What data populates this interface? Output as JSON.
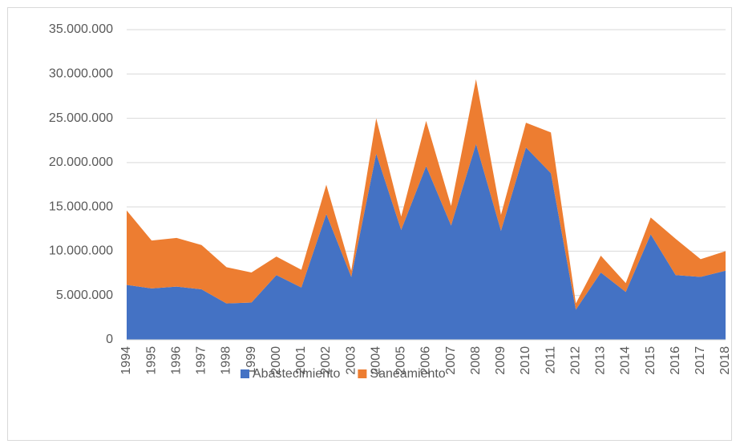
{
  "chart_data": {
    "type": "stacked_area",
    "categories": [
      "1994",
      "1995",
      "1996",
      "1997",
      "1998",
      "1999",
      "2000",
      "2001",
      "2002",
      "2003",
      "2004",
      "2005",
      "2006",
      "2007",
      "2008",
      "2009",
      "2010",
      "2011",
      "2012",
      "2013",
      "2014",
      "2015",
      "2016",
      "2017",
      "2018"
    ],
    "series": [
      {
        "name": "Abastecimiento",
        "color": "#4472c4",
        "values": [
          6200000,
          5800000,
          6000000,
          5700000,
          4100000,
          4200000,
          7300000,
          5900000,
          14200000,
          7100000,
          21000000,
          12400000,
          19600000,
          12900000,
          22100000,
          12300000,
          21700000,
          18800000,
          3400000,
          7600000,
          5400000,
          11900000,
          7300000,
          7100000,
          7800000
        ]
      },
      {
        "name": "Saneamiento",
        "color": "#ed7d31",
        "values": [
          8400000,
          5400000,
          5500000,
          5000000,
          4100000,
          3400000,
          2100000,
          2000000,
          3300000,
          700000,
          4000000,
          1500000,
          5100000,
          2200000,
          7300000,
          1800000,
          2800000,
          4600000,
          700000,
          1900000,
          1000000,
          1900000,
          4100000,
          2000000,
          2200000
        ]
      }
    ],
    "ylim": [
      0,
      35000000
    ],
    "yticks": [
      0,
      {
        "value": 5000000,
        "label": "5.000.000"
      },
      {
        "value": 10000000,
        "label": "10.000.000"
      },
      {
        "value": 15000000,
        "label": "15.000.000"
      },
      {
        "value": 20000000,
        "label": "20.000.000"
      },
      {
        "value": 25000000,
        "label": "25.000.000"
      },
      {
        "value": 30000000,
        "label": "30.000.000"
      },
      {
        "value": 35000000,
        "label": "35.000.000"
      }
    ],
    "grid": true,
    "legend": "bottom"
  }
}
